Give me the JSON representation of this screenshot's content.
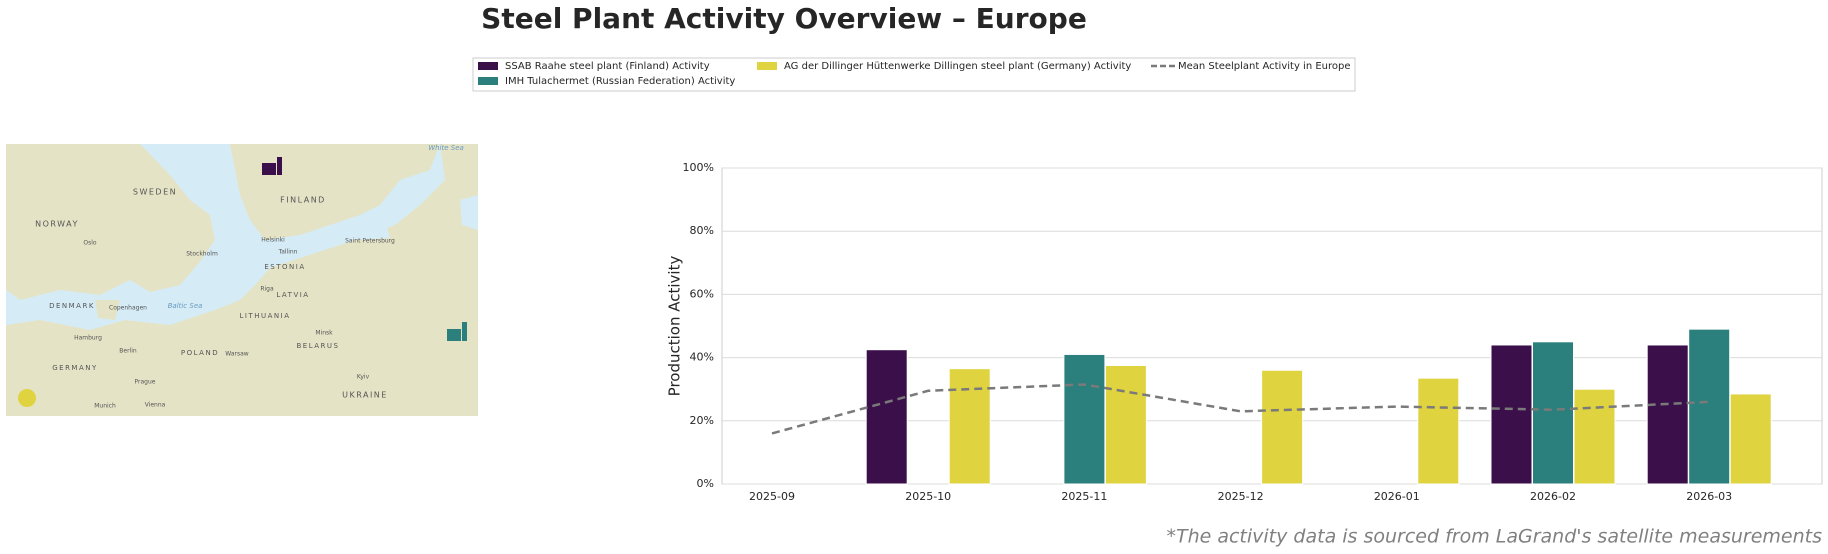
{
  "chart_data": {
    "type": "bar",
    "title": "Steel Plant Activity Overview – Europe",
    "y_label": "Production Activity",
    "categories": [
      "2025-09",
      "2025-10",
      "2025-11",
      "2025-12",
      "2026-01",
      "2026-02",
      "2026-03"
    ],
    "series": [
      {
        "name": "SSAB Raahe steel plant (Finland) Activity",
        "type": "bar",
        "color": "#3b0f4a",
        "values": [
          null,
          42.5,
          null,
          null,
          null,
          44,
          44
        ]
      },
      {
        "name": "IMH Tulachermet (Russian Federation) Activity",
        "type": "bar",
        "color": "#2b7f7c",
        "values": [
          null,
          null,
          41,
          null,
          null,
          45,
          49
        ]
      },
      {
        "name": "AG der Dillinger Hüttenwerke Dillingen steel plant (Germany) Activity",
        "type": "bar",
        "color": "#e0d340",
        "values": [
          null,
          36.5,
          37.5,
          36,
          33.5,
          30,
          28.5
        ]
      },
      {
        "name": "Mean Steelplant Activity in Europe",
        "type": "line",
        "color": "#7a7a7a",
        "dashed": true,
        "values": [
          16,
          29.5,
          31.5,
          23,
          24.5,
          23.5,
          26
        ]
      }
    ],
    "ylim": [
      0,
      100
    ],
    "yticks": [
      {
        "value": 0,
        "label": "0%"
      },
      {
        "value": 20,
        "label": "20%"
      },
      {
        "value": 40,
        "label": "40%"
      },
      {
        "value": 60,
        "label": "60%"
      },
      {
        "value": 80,
        "label": "80%"
      },
      {
        "value": 100,
        "label": "100%"
      }
    ],
    "grid": true
  },
  "map": {
    "labels": [
      "White Sea",
      "SWEDEN",
      "FINLAND",
      "NORWAY",
      "Oslo",
      "Stockholm",
      "Helsinki",
      "Tallinn",
      "Saint Petersburg",
      "ESTONIA",
      "Riga",
      "LATVIA",
      "DENMARK",
      "Copenhagen",
      "Baltic Sea",
      "LITHUANIA",
      "Minsk",
      "BELARUS",
      "Hamburg",
      "Berlin",
      "POLAND",
      "Warsaw",
      "GERMANY",
      "Prague",
      "Kyiv",
      "UKRAINE",
      "Vienna",
      "Munich"
    ]
  },
  "footnote": "*The activity data is sourced from LaGrand's satellite measurements"
}
